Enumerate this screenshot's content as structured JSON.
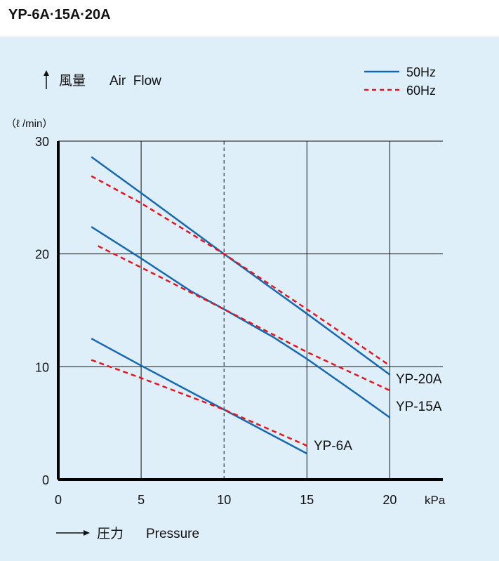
{
  "title": "YP-6A·15A·20A",
  "colors": {
    "panel_bg": "#dfeffa",
    "hz50": "#1668b0",
    "hz60": "#e4151f",
    "grid": "#111111",
    "axis": "#000000"
  },
  "labels": {
    "y_axis_jp": "風量",
    "y_axis_en": "Air  Flow",
    "y_unit": "（ℓ /min）",
    "x_axis_jp": "圧力",
    "x_axis_en": "Pressure",
    "x_unit": "kPa"
  },
  "legend": {
    "hz50": "50Hz",
    "hz60": "60Hz",
    "placement": "top-right"
  },
  "chart_data": {
    "type": "line",
    "x_label": "",
    "y_label": "",
    "xlim": [
      0,
      23.2
    ],
    "ylim": [
      0,
      30
    ],
    "x_ticks": [
      "0",
      "5",
      "10",
      "15",
      "20"
    ],
    "y_ticks": [
      "0",
      "10",
      "20",
      "30"
    ],
    "grid": true,
    "dashed_reference_x": 10,
    "series": [
      {
        "model": "YP-20A",
        "hz": "50Hz",
        "style": "solid",
        "points": [
          [
            2.0,
            28.6
          ],
          [
            5.0,
            25.4
          ],
          [
            10.0,
            20.0
          ],
          [
            15.0,
            14.7
          ],
          [
            20.0,
            9.3
          ]
        ]
      },
      {
        "model": "YP-20A",
        "hz": "60Hz",
        "style": "dashed",
        "points": [
          [
            2.0,
            26.9
          ],
          [
            5.0,
            24.5
          ],
          [
            10.0,
            20.0
          ],
          [
            15.0,
            15.1
          ],
          [
            20.0,
            10.1
          ]
        ]
      },
      {
        "model": "YP-15A",
        "hz": "50Hz",
        "style": "solid",
        "points": [
          [
            2.0,
            22.4
          ],
          [
            5.0,
            19.6
          ],
          [
            8.0,
            16.7
          ],
          [
            10.0,
            15.1
          ],
          [
            13.0,
            12.6
          ],
          [
            15.0,
            10.7
          ],
          [
            18.0,
            7.6
          ],
          [
            20.0,
            5.5
          ]
        ]
      },
      {
        "model": "YP-15A",
        "hz": "60Hz",
        "style": "dashed",
        "points": [
          [
            2.4,
            20.7
          ],
          [
            5.0,
            18.8
          ],
          [
            10.0,
            15.1
          ],
          [
            15.0,
            11.3
          ],
          [
            20.0,
            7.9
          ]
        ]
      },
      {
        "model": "YP-6A",
        "hz": "50Hz",
        "style": "solid",
        "points": [
          [
            2.0,
            12.5
          ],
          [
            5.0,
            10.1
          ],
          [
            10.0,
            6.2
          ],
          [
            15.0,
            2.3
          ]
        ]
      },
      {
        "model": "YP-6A",
        "hz": "60Hz",
        "style": "dashed",
        "points": [
          [
            2.0,
            10.6
          ],
          [
            5.0,
            9.0
          ],
          [
            10.0,
            6.2
          ],
          [
            15.0,
            3.0
          ]
        ]
      }
    ],
    "series_labels": [
      {
        "text": "YP-20A"
      },
      {
        "text": "YP-15A"
      },
      {
        "text": "YP-6A"
      }
    ]
  }
}
